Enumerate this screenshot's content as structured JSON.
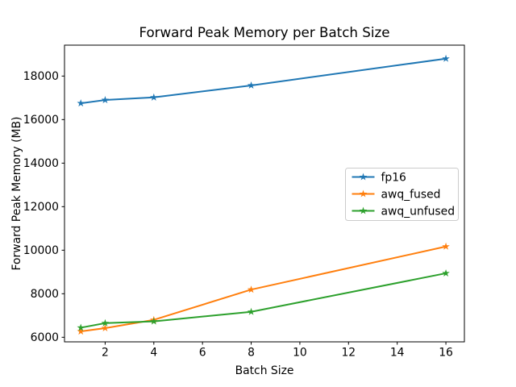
{
  "chart_data": {
    "type": "line",
    "title": "Forward Peak Memory per Batch Size",
    "xlabel": "Batch Size",
    "ylabel": "Forward Peak Memory (MB)",
    "x": [
      1,
      2,
      4,
      8,
      16
    ],
    "series": [
      {
        "name": "fp16",
        "color": "#1f77b4",
        "marker": "star",
        "values": [
          16750,
          16900,
          17020,
          17570,
          18800
        ]
      },
      {
        "name": "awq_fused",
        "color": "#ff7f0e",
        "marker": "star",
        "values": [
          6270,
          6420,
          6800,
          8190,
          10170
        ]
      },
      {
        "name": "awq_unfused",
        "color": "#2ca02c",
        "marker": "star",
        "values": [
          6440,
          6650,
          6730,
          7170,
          8940
        ]
      }
    ],
    "x_ticks": [
      2,
      4,
      6,
      8,
      10,
      12,
      14,
      16
    ],
    "y_ticks": [
      6000,
      8000,
      10000,
      12000,
      14000,
      16000,
      18000
    ],
    "xlim": [
      0.33,
      16.76
    ],
    "ylim": [
      5790,
      19420
    ],
    "grid": false,
    "legend": {
      "position": "center-right",
      "entries": [
        "fp16",
        "awq_fused",
        "awq_unfused"
      ],
      "border_color": "#cccccc",
      "background_color": "#ffffff"
    },
    "spine_color": "#000000",
    "background_color": "#ffffff"
  }
}
